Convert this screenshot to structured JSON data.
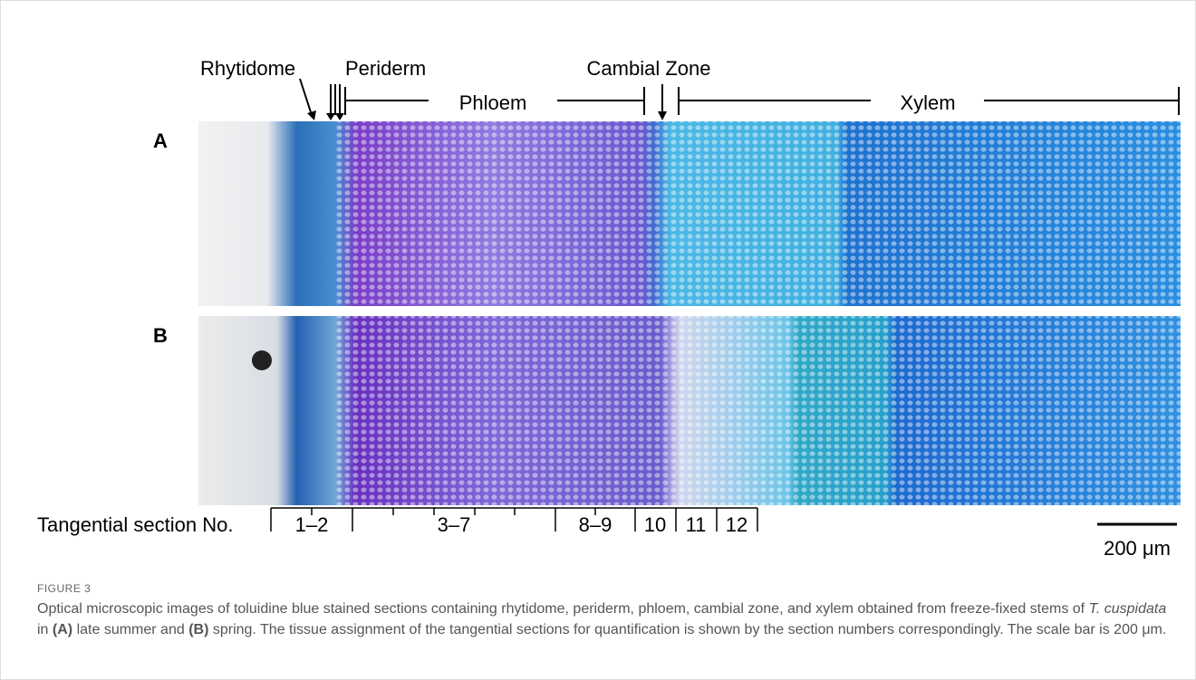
{
  "panel_labels": [
    "A",
    "B"
  ],
  "tissue_labels": {
    "rhytidome": "Rhytidome",
    "periderm": "Periderm",
    "phloem": "Phloem",
    "cambial_zone": "Cambial Zone",
    "xylem": "Xylem"
  },
  "section_axis": {
    "title": "Tangential section No.",
    "labels": [
      "1–2",
      "3–7",
      "8–9",
      "10",
      "11",
      "12"
    ]
  },
  "scale_bar": "200 μm",
  "figure_label": "FIGURE 3",
  "caption": [
    "Optical microscopic images of toluidine blue stained sections containing rhytidome, periderm, phloem, cambial zone, and xylem obtained from freeze-fixed stems of ",
    "T. cuspidata",
    " in ",
    "(A)",
    " late summer and ",
    "(B)",
    " spring. The tissue assignment of the tangential sections for quantification is shown by the section numbers correspondingly. The scale bar is 200 μm."
  ]
}
